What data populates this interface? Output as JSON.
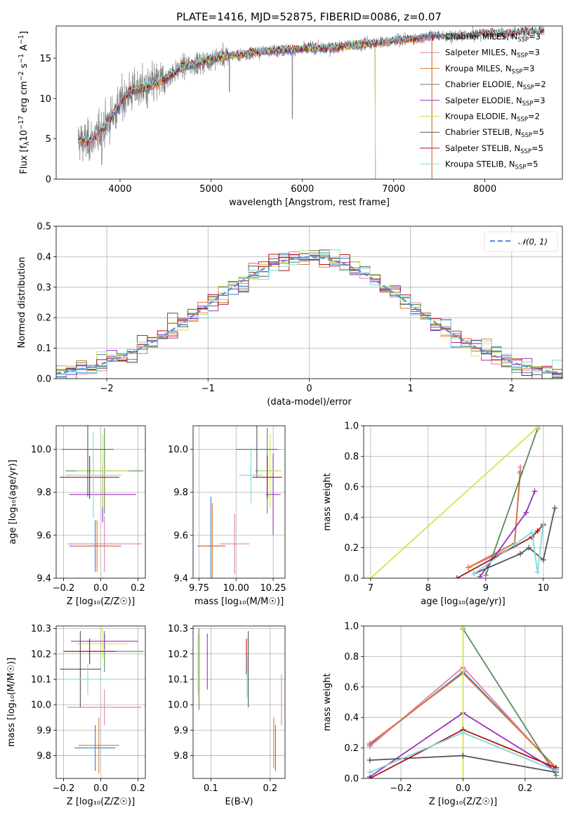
{
  "title": "PLATE=1416, MJD=52875, FIBERID=0086, z=0.07",
  "colors": {
    "chabrier_miles": "#3c7ed8",
    "salpeter_miles": "#e07fa8",
    "kroupa_miles": "#e0792a",
    "chabrier_elodie": "#5a8a5a",
    "salpeter_elodie": "#9b2fc0",
    "kroupa_elodie": "#cce84a",
    "chabrier_stelib": "#555555",
    "salpeter_stelib": "#b01010",
    "kroupa_stelib": "#7fd8dc",
    "data": "#808080",
    "normal": "#5a8fd8"
  },
  "chart_data": [
    {
      "id": "spectrum",
      "type": "line",
      "xlabel": "wavelength [Angstrom, rest frame]",
      "xlim": [
        3300,
        8850
      ],
      "ylim": [
        0,
        19
      ],
      "xticks": [
        "4000",
        "5000",
        "6000",
        "7000",
        "8000"
      ],
      "yticks": [
        "0",
        "5",
        "10",
        "15"
      ],
      "ylabel_parts": [
        "Flux [f",
        "λ",
        "10",
        "−17",
        " erg cm",
        "−2",
        " s",
        "−1",
        " A",
        "−1",
        "]"
      ],
      "legend": [
        {
          "key": "chabrier_miles",
          "name": "Chabrier MILES, N",
          "sub": "SSP",
          "val": "=3"
        },
        {
          "key": "salpeter_miles",
          "name": "Salpeter MILES, N",
          "sub": "SSP",
          "val": "=3"
        },
        {
          "key": "kroupa_miles",
          "name": "Kroupa MILES, N",
          "sub": "SSP",
          "val": "=3"
        },
        {
          "key": "chabrier_elodie",
          "name": "Chabrier ELODIE, N",
          "sub": "SSP",
          "val": "=2"
        },
        {
          "key": "salpeter_elodie",
          "name": "Salpeter ELODIE, N",
          "sub": "SSP",
          "val": "=3"
        },
        {
          "key": "kroupa_elodie",
          "name": "Kroupa ELODIE, N",
          "sub": "SSP",
          "val": "=2"
        },
        {
          "key": "chabrier_stelib",
          "name": "Chabrier STELIB, N",
          "sub": "SSP",
          "val": "=5"
        },
        {
          "key": "salpeter_stelib",
          "name": "Salpeter STELIB, N",
          "sub": "SSP",
          "val": "=5"
        },
        {
          "key": "kroupa_stelib",
          "name": "Kroupa STELIB, N",
          "sub": "SSP",
          "val": "=5"
        }
      ],
      "continuum": [
        [
          3550,
          4.8
        ],
        [
          3650,
          4.6
        ],
        [
          3750,
          5.5
        ],
        [
          3850,
          6.8
        ],
        [
          3950,
          8.5
        ],
        [
          4050,
          10.2
        ],
        [
          4150,
          11.0
        ],
        [
          4300,
          11.4
        ],
        [
          4500,
          12.5
        ],
        [
          4700,
          14.0
        ],
        [
          4900,
          14.5
        ],
        [
          5100,
          15.2
        ],
        [
          5300,
          15.4
        ],
        [
          5500,
          15.8
        ],
        [
          5700,
          16.0
        ],
        [
          5900,
          16.1
        ],
        [
          6100,
          16.3
        ],
        [
          6300,
          16.2
        ],
        [
          6500,
          16.6
        ],
        [
          6700,
          16.8
        ],
        [
          6900,
          17.0
        ],
        [
          7100,
          17.3
        ],
        [
          7300,
          17.5
        ],
        [
          7420,
          17.8
        ],
        [
          7600,
          17.6
        ],
        [
          7800,
          17.8
        ],
        [
          8000,
          18.0
        ],
        [
          8200,
          18.0
        ],
        [
          8400,
          18.2
        ],
        [
          8650,
          18.4
        ]
      ],
      "model_coverage": {
        "miles": [
          3540,
          7420
        ],
        "elodie": [
          3900,
          6800
        ],
        "stelib": [
          3540,
          8650
        ]
      },
      "data_range": [
        3540,
        8650
      ]
    },
    {
      "id": "residuals",
      "type": "step",
      "xlabel": "(data-model)/error",
      "ylabel": "Normed distribution",
      "xlim": [
        -2.5,
        2.5
      ],
      "ylim": [
        0,
        0.5
      ],
      "xticks": [
        "−2",
        "−1",
        "0",
        "1",
        "2"
      ],
      "xtick_values": [
        -2,
        -1,
        0,
        1,
        2
      ],
      "yticks": [
        "0.0",
        "0.1",
        "0.2",
        "0.3",
        "0.4",
        "0.5"
      ],
      "legend": [
        {
          "key": "normal",
          "name": "𝒩(0, 1)"
        }
      ],
      "bin_width": 0.1,
      "series": [
        "chabrier_miles",
        "salpeter_miles",
        "kroupa_miles",
        "chabrier_elodie",
        "salpeter_elodie",
        "kroupa_elodie",
        "chabrier_stelib",
        "salpeter_stelib",
        "kroupa_stelib"
      ]
    },
    {
      "id": "age_vs_Z",
      "type": "errorbar",
      "xlabel": "Z [log₁₀(Z/Z☉)]",
      "ylabel": "age  [log₁₀(age/yr)]",
      "xlim": [
        -0.24,
        0.24
      ],
      "ylim": [
        9.4,
        10.11
      ],
      "xticks": [
        "−0.2",
        "0.0",
        "0.2"
      ],
      "xtick_values": [
        -0.2,
        0,
        0.2
      ],
      "yticks": [
        "9.4",
        "9.6",
        "9.8",
        "10.0"
      ],
      "ytick_values": [
        9.4,
        9.6,
        9.8,
        10.0
      ],
      "points": [
        {
          "c": "chabrier_miles",
          "x": -0.03,
          "xerr": 0.14,
          "y": 9.55,
          "yerr": 0.12
        },
        {
          "c": "salpeter_miles",
          "x": 0.02,
          "xerr": 0.2,
          "y": 9.56,
          "yerr": 0.13
        },
        {
          "c": "kroupa_miles",
          "x": -0.02,
          "xerr": 0.12,
          "y": 9.55,
          "yerr": 0.12
        },
        {
          "c": "chabrier_elodie",
          "x": 0.02,
          "xerr": 0.21,
          "y": 9.9,
          "yerr": 0.2
        },
        {
          "c": "salpeter_elodie",
          "x": 0.01,
          "xerr": 0.18,
          "y": 9.79,
          "yerr": 0.13
        },
        {
          "c": "kroupa_elodie",
          "x": 0.01,
          "xerr": 0.14,
          "y": 9.9,
          "yerr": 0.17
        },
        {
          "c": "chabrier_stelib",
          "x": -0.07,
          "xerr": 0.14,
          "y": 10.0,
          "yerr": 0.22
        },
        {
          "c": "salpeter_stelib",
          "x": -0.06,
          "xerr": 0.16,
          "y": 9.87,
          "yerr": 0.1
        },
        {
          "c": "kroupa_stelib",
          "x": -0.04,
          "xerr": 0.15,
          "y": 9.88,
          "yerr": 0.2
        }
      ]
    },
    {
      "id": "age_vs_mass",
      "type": "errorbar",
      "xlabel": "mass [log₁₀(M/M☉)]",
      "ylabel": "",
      "xlim": [
        9.71,
        10.33
      ],
      "ylim": [
        9.4,
        10.11
      ],
      "xticks": [
        "9.75",
        "10.00",
        "10.25"
      ],
      "xtick_values": [
        9.75,
        10.0,
        10.25
      ],
      "yticks": [
        "9.4",
        "9.6",
        "9.8",
        "10.0"
      ],
      "ytick_values": [
        9.4,
        9.6,
        9.8,
        10.0
      ],
      "points": [
        {
          "c": "chabrier_miles",
          "x": 9.83,
          "xerr": 0.09,
          "y": 9.55,
          "yerr": 0.23
        },
        {
          "c": "salpeter_miles",
          "x": 9.99,
          "xerr": 0.1,
          "y": 9.56,
          "yerr": 0.14
        },
        {
          "c": "kroupa_miles",
          "x": 9.84,
          "xerr": 0.09,
          "y": 9.55,
          "yerr": 0.2
        },
        {
          "c": "chabrier_elodie",
          "x": 10.21,
          "xerr": 0.08,
          "y": 9.9,
          "yerr": 0.2
        },
        {
          "c": "salpeter_elodie",
          "x": 10.25,
          "xerr": 0.05,
          "y": 9.79,
          "yerr": 0.19
        },
        {
          "c": "kroupa_elodie",
          "x": 10.23,
          "xerr": 0.08,
          "y": 9.9,
          "yerr": 0.17
        },
        {
          "c": "chabrier_stelib",
          "x": 10.14,
          "xerr": 0.14,
          "y": 10.0,
          "yerr": 0.13
        },
        {
          "c": "salpeter_stelib",
          "x": 10.21,
          "xerr": 0.1,
          "y": 9.87,
          "yerr": 0.1
        },
        {
          "c": "kroupa_stelib",
          "x": 10.1,
          "xerr": 0.08,
          "y": 9.88,
          "yerr": 0.13
        }
      ]
    },
    {
      "id": "weight_vs_age",
      "type": "line",
      "xlabel": "age  [log₁₀(age/yr)]",
      "ylabel": "mass weight",
      "xlim": [
        6.88,
        10.33
      ],
      "ylim": [
        0,
        1
      ],
      "xticks": [
        "7",
        "8",
        "9",
        "10"
      ],
      "xtick_values": [
        7,
        8,
        9,
        10
      ],
      "yticks": [
        "0.0",
        "0.2",
        "0.4",
        "0.6",
        "0.8",
        "1.0"
      ],
      "ytick_values": [
        0,
        0.2,
        0.4,
        0.6,
        0.8,
        1.0
      ],
      "series": [
        {
          "c": "chabrier_miles",
          "x": [
            8.7,
            9.5,
            9.6
          ],
          "y": [
            0.07,
            0.23,
            0.69
          ]
        },
        {
          "c": "salpeter_miles",
          "x": [
            8.7,
            9.5,
            9.6
          ],
          "y": [
            0.07,
            0.21,
            0.73
          ]
        },
        {
          "c": "kroupa_miles",
          "x": [
            8.7,
            9.5,
            9.6
          ],
          "y": [
            0.07,
            0.23,
            0.7
          ]
        },
        {
          "c": "chabrier_elodie",
          "x": [
            9.0,
            9.9
          ],
          "y": [
            0.02,
            0.98
          ]
        },
        {
          "c": "salpeter_elodie",
          "x": [
            8.9,
            9.7,
            9.85
          ],
          "y": [
            0.01,
            0.43,
            0.57
          ]
        },
        {
          "c": "kroupa_elodie",
          "x": [
            7.0,
            9.9
          ],
          "y": [
            0.0,
            0.99
          ]
        },
        {
          "c": "chabrier_stelib",
          "x": [
            8.8,
            9.6,
            9.75,
            10.0,
            10.2
          ],
          "y": [
            0.03,
            0.16,
            0.2,
            0.12,
            0.46
          ]
        },
        {
          "c": "salpeter_stelib",
          "x": [
            8.5,
            9.8,
            9.9,
            10.0
          ],
          "y": [
            0.0,
            0.27,
            0.31,
            0.35
          ]
        },
        {
          "c": "kroupa_stelib",
          "x": [
            8.8,
            9.5,
            9.8,
            9.9,
            10.0
          ],
          "y": [
            0.03,
            0.22,
            0.3,
            0.04,
            0.36
          ]
        }
      ]
    },
    {
      "id": "mass_vs_Z",
      "type": "errorbar",
      "xlabel": "Z [log₁₀(Z/Z☉)]",
      "ylabel": "mass [log₁₀(M/M☉)]",
      "xlim": [
        -0.24,
        0.24
      ],
      "ylim": [
        9.71,
        10.31
      ],
      "xticks": [
        "−0.2",
        "0.0",
        "0.2"
      ],
      "xtick_values": [
        -0.2,
        0,
        0.2
      ],
      "yticks": [
        "9.8",
        "9.9",
        "10.0",
        "10.1",
        "10.2",
        "10.3"
      ],
      "ytick_values": [
        9.8,
        9.9,
        10.0,
        10.1,
        10.2,
        10.3
      ],
      "points": [
        {
          "c": "chabrier_miles",
          "x": -0.03,
          "xerr": 0.11,
          "y": 9.83,
          "yerr": 0.09
        },
        {
          "c": "salpeter_miles",
          "x": 0.02,
          "xerr": 0.2,
          "y": 9.99,
          "yerr": 0.07
        },
        {
          "c": "kroupa_miles",
          "x": -0.01,
          "xerr": 0.11,
          "y": 9.84,
          "yerr": 0.11
        },
        {
          "c": "chabrier_elodie",
          "x": 0.02,
          "xerr": 0.21,
          "y": 10.21,
          "yerr": 0.08
        },
        {
          "c": "salpeter_elodie",
          "x": 0.02,
          "xerr": 0.18,
          "y": 10.25,
          "yerr": 0.03
        },
        {
          "c": "kroupa_elodie",
          "x": 0.01,
          "xerr": 0.14,
          "y": 10.24,
          "yerr": 0.06
        },
        {
          "c": "chabrier_stelib",
          "x": -0.11,
          "xerr": 0.11,
          "y": 10.14,
          "yerr": 0.15
        },
        {
          "c": "salpeter_stelib",
          "x": -0.06,
          "xerr": 0.14,
          "y": 10.21,
          "yerr": 0.05
        },
        {
          "c": "kroupa_stelib",
          "x": -0.07,
          "xerr": 0.15,
          "y": 10.1,
          "yerr": 0.06
        }
      ]
    },
    {
      "id": "mass_vs_ebv",
      "type": "errorbar",
      "xlabel": "E(B-V)",
      "ylabel": "",
      "xlim": [
        0.07,
        0.225
      ],
      "ylim": [
        9.71,
        10.31
      ],
      "xticks": [
        "0.1",
        "0.2"
      ],
      "xtick_values": [
        0.1,
        0.2
      ],
      "yticks": [
        "9.8",
        "9.9",
        "10.0",
        "10.1",
        "10.2",
        "10.3"
      ],
      "ytick_values": [
        9.8,
        9.9,
        10.0,
        10.1,
        10.2,
        10.3
      ],
      "points": [
        {
          "c": "chabrier_miles",
          "x": 0.209,
          "xerr": 0,
          "y": 9.83,
          "yerr": 0.09
        },
        {
          "c": "salpeter_miles",
          "x": 0.219,
          "xerr": 0,
          "y": 10.02,
          "yerr": 0.1
        },
        {
          "c": "kroupa_miles",
          "x": 0.206,
          "xerr": 0,
          "y": 9.85,
          "yerr": 0.1
        },
        {
          "c": "chabrier_elodie",
          "x": 0.08,
          "xerr": 0,
          "y": 10.14,
          "yerr": 0.16
        },
        {
          "c": "salpeter_elodie",
          "x": 0.094,
          "xerr": 0,
          "y": 10.17,
          "yerr": 0.11
        },
        {
          "c": "kroupa_elodie",
          "x": 0.078,
          "xerr": 0,
          "y": 10.16,
          "yerr": 0.12
        },
        {
          "c": "chabrier_stelib",
          "x": 0.163,
          "xerr": 0,
          "y": 10.14,
          "yerr": 0.15
        },
        {
          "c": "salpeter_stelib",
          "x": 0.16,
          "xerr": 0,
          "y": 10.19,
          "yerr": 0.07
        },
        {
          "c": "kroupa_stelib",
          "x": 0.161,
          "xerr": 0,
          "y": 10.11,
          "yerr": 0.08
        }
      ]
    },
    {
      "id": "weight_vs_Z",
      "type": "line",
      "xlabel": "Z [log₁₀(Z/Z☉)]",
      "ylabel": "mass weight",
      "xlim": [
        -0.32,
        0.32
      ],
      "ylim": [
        0,
        1
      ],
      "xticks": [
        "−0.2",
        "0.0",
        "0.2"
      ],
      "xtick_values": [
        -0.2,
        0,
        0.2
      ],
      "yticks": [
        "0.0",
        "0.2",
        "0.4",
        "0.6",
        "0.8",
        "1.0"
      ],
      "ytick_values": [
        0,
        0.2,
        0.4,
        0.6,
        0.8,
        1.0
      ],
      "series": [
        {
          "c": "chabrier_miles",
          "x": [
            -0.3,
            0.0,
            0.3
          ],
          "y": [
            0.22,
            0.7,
            0.07
          ]
        },
        {
          "c": "salpeter_miles",
          "x": [
            -0.3,
            0.0,
            0.3
          ],
          "y": [
            0.21,
            0.73,
            0.06
          ]
        },
        {
          "c": "kroupa_miles",
          "x": [
            -0.3,
            0.0,
            0.3
          ],
          "y": [
            0.23,
            0.69,
            0.07
          ]
        },
        {
          "c": "chabrier_elodie",
          "x": [
            0.0,
            0.3
          ],
          "y": [
            0.98,
            0.02
          ]
        },
        {
          "c": "salpeter_elodie",
          "x": [
            -0.3,
            0.0,
            0.3
          ],
          "y": [
            0.01,
            0.43,
            0.05
          ]
        },
        {
          "c": "kroupa_elodie",
          "x": [
            0.0,
            0.0
          ],
          "y": [
            0.0,
            0.99
          ]
        },
        {
          "c": "chabrier_stelib",
          "x": [
            -0.3,
            0.0,
            0.3
          ],
          "y": [
            0.12,
            0.15,
            0.04
          ]
        },
        {
          "c": "salpeter_stelib",
          "x": [
            -0.3,
            0.0,
            0.3
          ],
          "y": [
            0.0,
            0.32,
            0.07
          ]
        },
        {
          "c": "kroupa_stelib",
          "x": [
            -0.3,
            0.0,
            0.3
          ],
          "y": [
            0.04,
            0.3,
            0.05
          ]
        }
      ]
    }
  ]
}
